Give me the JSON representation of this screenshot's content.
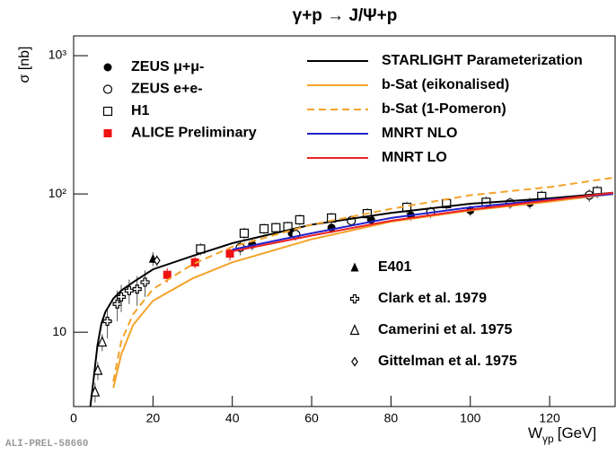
{
  "chart_data": {
    "type": "scatter",
    "title": "γ+p → J/Ψ+p",
    "x_label": {
      "main": "W",
      "sub": "γp",
      "unit": "[GeV]"
    },
    "y_label": "σ [nb]",
    "footer": "ALI-PREL-58660",
    "xlim": [
      0,
      136.5
    ],
    "ylim": [
      2.9,
      1390
    ],
    "log_y": true,
    "xticks": [
      0,
      20,
      40,
      60,
      80,
      100,
      120
    ],
    "yticks": [
      10,
      {
        "value": 100,
        "label": "10²"
      },
      {
        "value": 1000,
        "label": "10³"
      }
    ],
    "series": [
      {
        "name": "ZEUS μ+μ-",
        "mode": "markers",
        "marker": "circle",
        "color": "#000000",
        "x": [
          45,
          55,
          65,
          75,
          85,
          100,
          115,
          130
        ],
        "y": [
          43,
          52,
          57,
          65,
          70,
          76,
          86,
          97
        ],
        "errors": [
          4,
          4,
          5,
          5,
          6,
          7,
          8,
          9
        ]
      },
      {
        "name": "ZEUS e+e-",
        "mode": "markers",
        "marker": "open-circle",
        "color": "#000000",
        "x": [
          42,
          56,
          70,
          90,
          110,
          130
        ],
        "y": [
          41,
          51,
          64,
          74,
          86,
          98
        ],
        "errors": [
          5,
          5,
          6,
          7,
          8,
          10
        ]
      },
      {
        "name": "H1",
        "mode": "markers",
        "marker": "open-square",
        "color": "#000000",
        "x": [
          32,
          43,
          48,
          51,
          54,
          57,
          65,
          74,
          84,
          94,
          104,
          118,
          132
        ],
        "y": [
          40,
          52,
          56,
          57,
          58,
          65,
          67,
          72,
          80,
          85,
          87,
          96,
          104
        ],
        "errors": [
          4,
          5,
          5,
          5,
          5,
          6,
          6,
          7,
          8,
          8,
          9,
          10,
          11
        ]
      },
      {
        "name": "ALICE Preliminary",
        "mode": "markers",
        "marker": "square",
        "color": "#ee1111",
        "x": [
          23.6,
          30.6,
          39.4
        ],
        "y": [
          26,
          32,
          37
        ],
        "errors": [
          3,
          3,
          4
        ]
      },
      {
        "name": "E401",
        "mode": "markers",
        "marker": "triangle",
        "color": "#000000",
        "x": [
          20
        ],
        "y": [
          34
        ],
        "errors": [
          4
        ]
      },
      {
        "name": "Clark et al. 1979",
        "mode": "markers",
        "marker": "cross",
        "color": "#000000",
        "x": [
          8.5,
          11,
          12,
          14,
          16,
          18
        ],
        "y": [
          12,
          16,
          18,
          20,
          20.5,
          23
        ],
        "errors": [
          3,
          4,
          4,
          4,
          5,
          5
        ]
      },
      {
        "name": "Camerini et al. 1975",
        "mode": "markers",
        "marker": "open-triangle",
        "color": "#000000",
        "x": [
          5.4,
          6.1,
          7.2
        ],
        "y": [
          3.7,
          5.3,
          8.5
        ],
        "errors": [
          0.6,
          0.8,
          1.2
        ]
      },
      {
        "name": "Gittelman et al. 1975",
        "mode": "markers",
        "marker": "diamond",
        "color": "#000000",
        "x": [
          21
        ],
        "y": [
          33
        ],
        "errors": [
          3
        ]
      },
      {
        "name": "STARLIGHT Parameterization",
        "mode": "line",
        "style": "solid",
        "color": "#000000",
        "x": [
          4.2,
          5,
          6,
          7,
          8,
          10,
          12,
          15,
          20,
          30,
          40,
          60,
          80,
          100,
          120,
          136
        ],
        "y": [
          2.9,
          4.5,
          8,
          11.5,
          14,
          17.5,
          20,
          23,
          28.5,
          35.6,
          44,
          60,
          73,
          85,
          93,
          102
        ]
      },
      {
        "name": "b-Sat (eikonalised)",
        "mode": "line",
        "style": "solid",
        "color": "#f4a32a",
        "x": [
          10,
          12,
          15,
          20,
          30,
          40,
          60,
          80,
          100,
          120,
          136
        ],
        "y": [
          3.96,
          6.9,
          11.3,
          16.9,
          24.5,
          32,
          47,
          63,
          76,
          88,
          100
        ]
      },
      {
        "name": "b-Sat (1-Pomeron)",
        "mode": "line",
        "style": "dashed",
        "color": "#f4a32a",
        "x": [
          10,
          12,
          15,
          20,
          30,
          40,
          60,
          80,
          100,
          120,
          136
        ],
        "y": [
          4.4,
          8.6,
          13.5,
          20.5,
          31,
          41.5,
          60,
          78,
          98,
          112,
          131
        ]
      },
      {
        "name": "MNRT NLO",
        "mode": "line",
        "style": "solid",
        "color": "#2222cc",
        "x": [
          40,
          60,
          80,
          100,
          120,
          136
        ],
        "y": [
          39.6,
          52,
          67,
          80,
          91,
          100
        ]
      },
      {
        "name": "MNRT LO",
        "mode": "line",
        "style": "solid",
        "color": "#ee2222",
        "x": [
          40,
          60,
          80,
          100,
          120,
          136
        ],
        "y": [
          38.5,
          50,
          64,
          77,
          90,
          102
        ]
      }
    ]
  }
}
